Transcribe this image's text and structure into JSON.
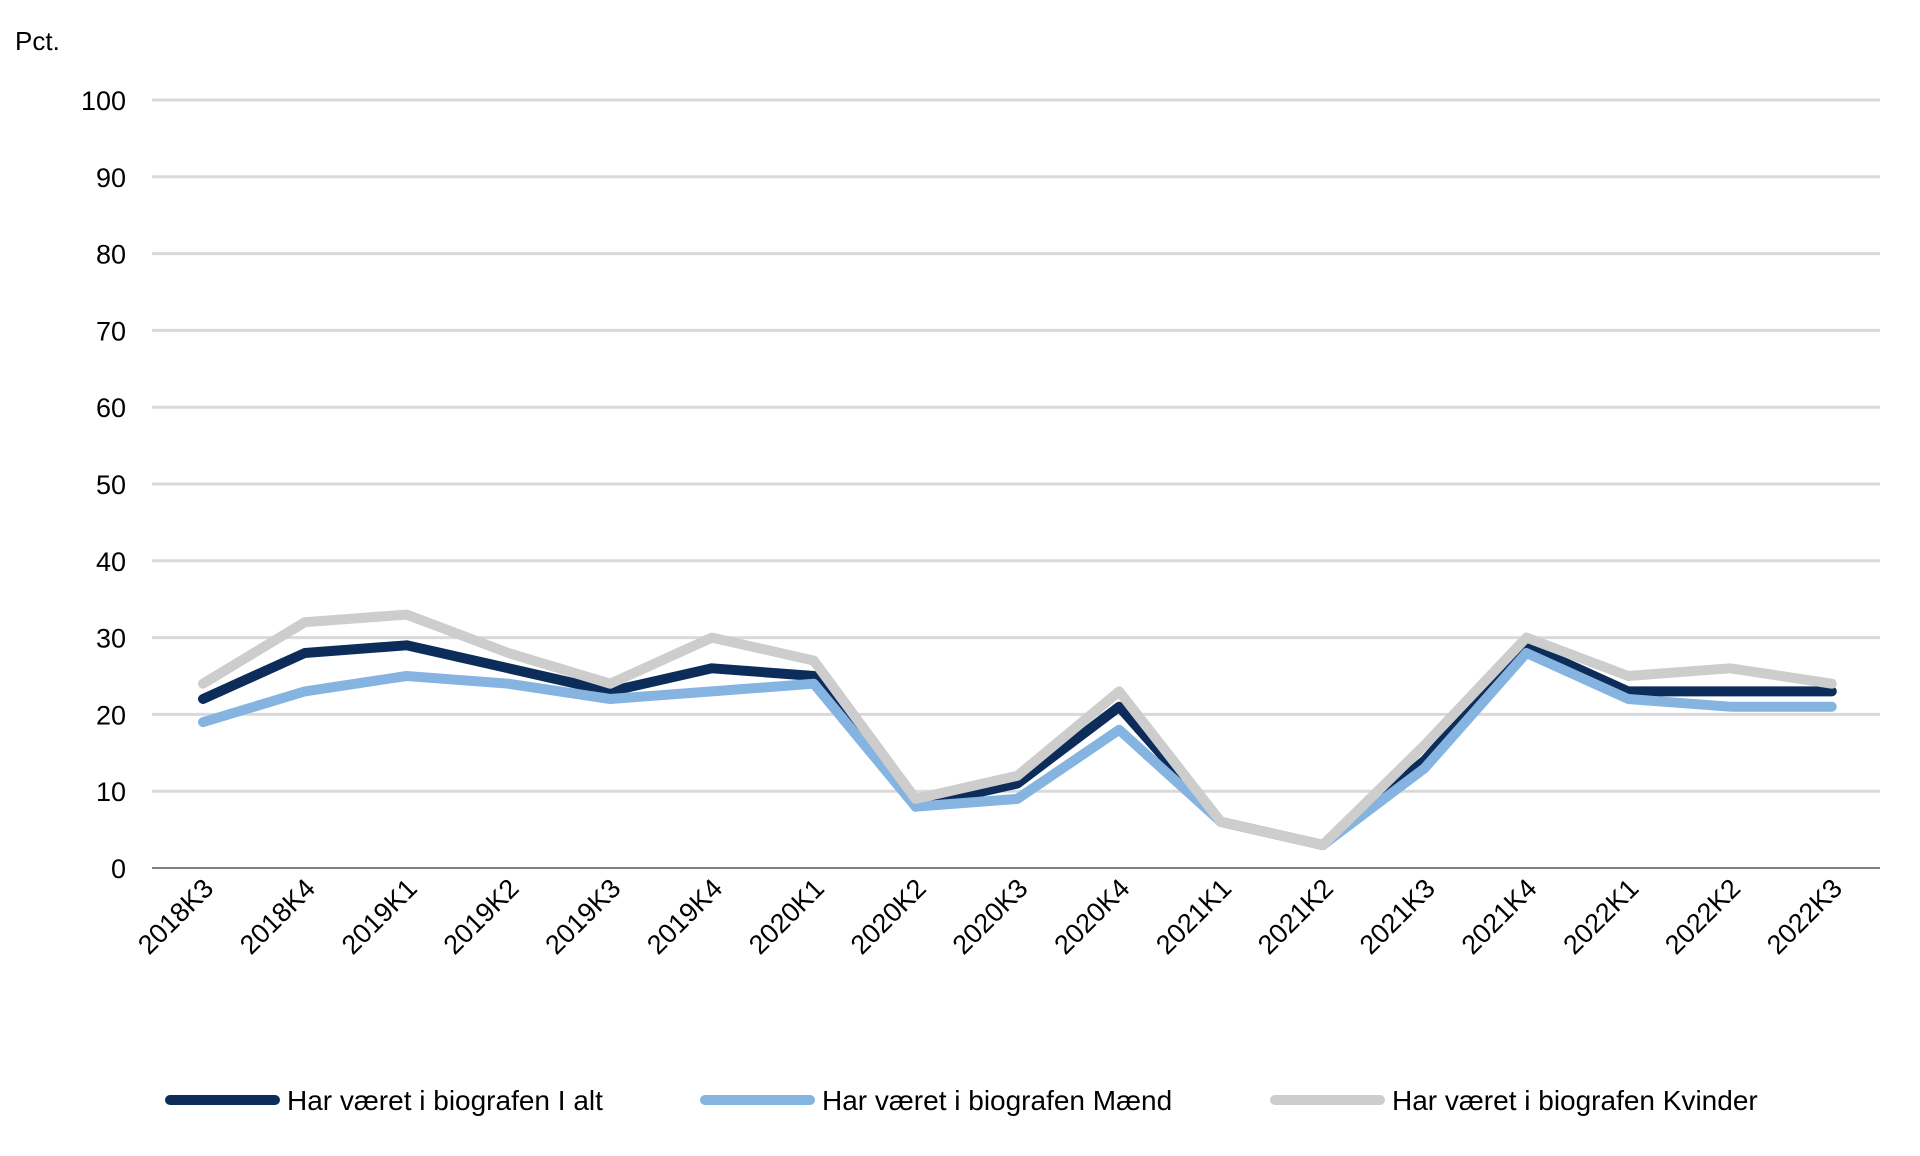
{
  "chart_data": {
    "type": "line",
    "y_unit_label": "Pct.",
    "categories": [
      "2018K3",
      "2018K4",
      "2019K1",
      "2019K2",
      "2019K3",
      "2019K4",
      "2020K1",
      "2020K2",
      "2020K3",
      "2020K4",
      "2021K1",
      "2021K2",
      "2021K3",
      "2021K4",
      "2022K1",
      "2022K2",
      "2022K3"
    ],
    "ylim": [
      0,
      100
    ],
    "yticks": [
      0,
      10,
      20,
      30,
      40,
      50,
      60,
      70,
      80,
      90,
      100
    ],
    "grid": true,
    "legend_position": "bottom",
    "series": [
      {
        "name": "Har været i biografen I alt",
        "color": "#0c2d5a",
        "values": [
          22,
          28,
          29,
          26,
          23,
          26,
          25,
          8,
          11,
          21,
          6,
          3,
          14,
          29,
          23,
          23,
          23
        ]
      },
      {
        "name": "Har været i biografen Mænd",
        "color": "#86b4e0",
        "values": [
          19,
          23,
          25,
          24,
          22,
          23,
          24,
          8,
          9,
          18,
          6,
          3,
          13,
          28,
          22,
          21,
          21
        ]
      },
      {
        "name": "Har været i biografen Kvinder",
        "color": "#cdcdcd",
        "values": [
          24,
          32,
          33,
          28,
          24,
          30,
          27,
          9,
          12,
          23,
          6,
          3,
          16,
          30,
          25,
          26,
          24
        ]
      }
    ]
  }
}
